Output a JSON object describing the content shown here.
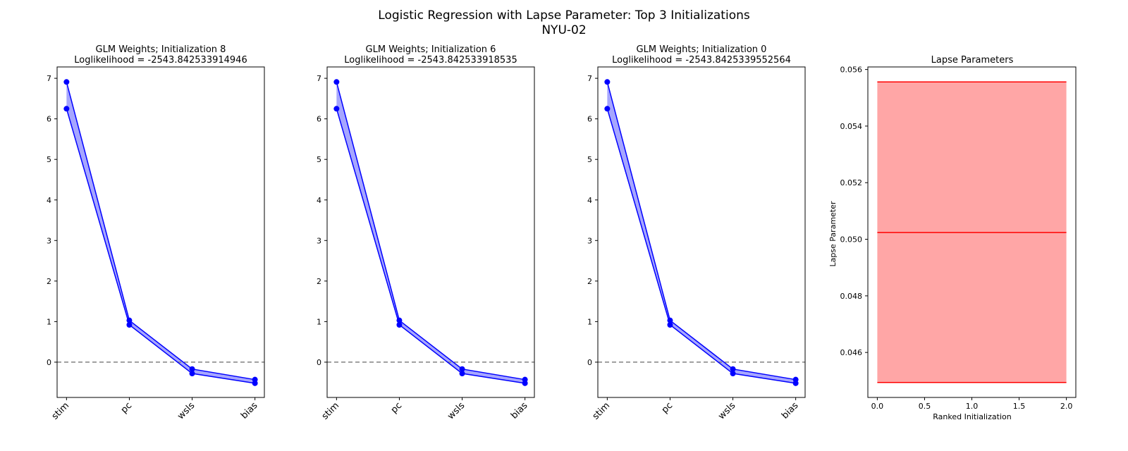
{
  "figure": {
    "title_line1": "Logistic Regression with Lapse Parameter: Top 3 Initializations",
    "title_line2": "NYU-02"
  },
  "chart_data": [
    {
      "type": "line",
      "title_line1": "GLM Weights; Initialization 8",
      "title_line2": "Loglikelihood = -2543.842533914946",
      "categories": [
        "stim",
        "pc",
        "wsls",
        "bias"
      ],
      "series": [
        {
          "values": [
            6.91,
            1.03,
            -0.17,
            -0.43
          ],
          "color": "#0000ff"
        },
        {
          "values": [
            6.25,
            0.92,
            -0.28,
            -0.52
          ],
          "color": "#0000ff"
        }
      ],
      "band_color": "#0000ff",
      "reference_line": {
        "y": 0,
        "style": "dashed",
        "color": "#808080"
      },
      "yticks": [
        0,
        1,
        2,
        3,
        4,
        5,
        6,
        7
      ],
      "ylim": [
        -0.87,
        7.28
      ]
    },
    {
      "type": "line",
      "title_line1": "GLM Weights; Initialization 6",
      "title_line2": "Loglikelihood = -2543.842533918535",
      "categories": [
        "stim",
        "pc",
        "wsls",
        "bias"
      ],
      "series": [
        {
          "values": [
            6.91,
            1.03,
            -0.17,
            -0.43
          ],
          "color": "#0000ff"
        },
        {
          "values": [
            6.25,
            0.92,
            -0.28,
            -0.52
          ],
          "color": "#0000ff"
        }
      ],
      "band_color": "#0000ff",
      "reference_line": {
        "y": 0,
        "style": "dashed",
        "color": "#808080"
      },
      "yticks": [
        0,
        1,
        2,
        3,
        4,
        5,
        6,
        7
      ],
      "ylim": [
        -0.87,
        7.28
      ]
    },
    {
      "type": "line",
      "title_line1": "GLM Weights; Initialization 0",
      "title_line2": "Loglikelihood = -2543.8425339552564",
      "categories": [
        "stim",
        "pc",
        "wsls",
        "bias"
      ],
      "series": [
        {
          "values": [
            6.91,
            1.03,
            -0.17,
            -0.43
          ],
          "color": "#0000ff"
        },
        {
          "values": [
            6.25,
            0.92,
            -0.28,
            -0.52
          ],
          "color": "#0000ff"
        }
      ],
      "band_color": "#0000ff",
      "reference_line": {
        "y": 0,
        "style": "dashed",
        "color": "#808080"
      },
      "yticks": [
        0,
        1,
        2,
        3,
        4,
        5,
        6,
        7
      ],
      "ylim": [
        -0.87,
        7.28
      ]
    },
    {
      "type": "line",
      "title": "Lapse Parameters",
      "xlabel": "Ranked Initialization",
      "ylabel": "Lapse Parameter",
      "x": [
        0,
        2
      ],
      "series": [
        {
          "values": [
            0.05556,
            0.05556
          ],
          "color": "#ff0000"
        },
        {
          "values": [
            0.05024,
            0.05024
          ],
          "color": "#ff0000"
        },
        {
          "values": [
            0.04494,
            0.04494
          ],
          "color": "#ff0000"
        }
      ],
      "band": {
        "lower": 0.04494,
        "upper": 0.05556,
        "color": "#ff0000",
        "alpha": 0.35
      },
      "xticks": [
        0.0,
        0.5,
        1.0,
        1.5,
        2.0
      ],
      "xtick_labels": [
        "0.0",
        "0.5",
        "1.0",
        "1.5",
        "2.0"
      ],
      "yticks": [
        0.046,
        0.048,
        0.05,
        0.052,
        0.054,
        0.056
      ],
      "ytick_labels": [
        "0.046",
        "0.048",
        "0.050",
        "0.052",
        "0.054",
        "0.056"
      ],
      "xlim": [
        -0.1,
        2.1
      ],
      "ylim": [
        0.04441,
        0.05609
      ]
    }
  ]
}
